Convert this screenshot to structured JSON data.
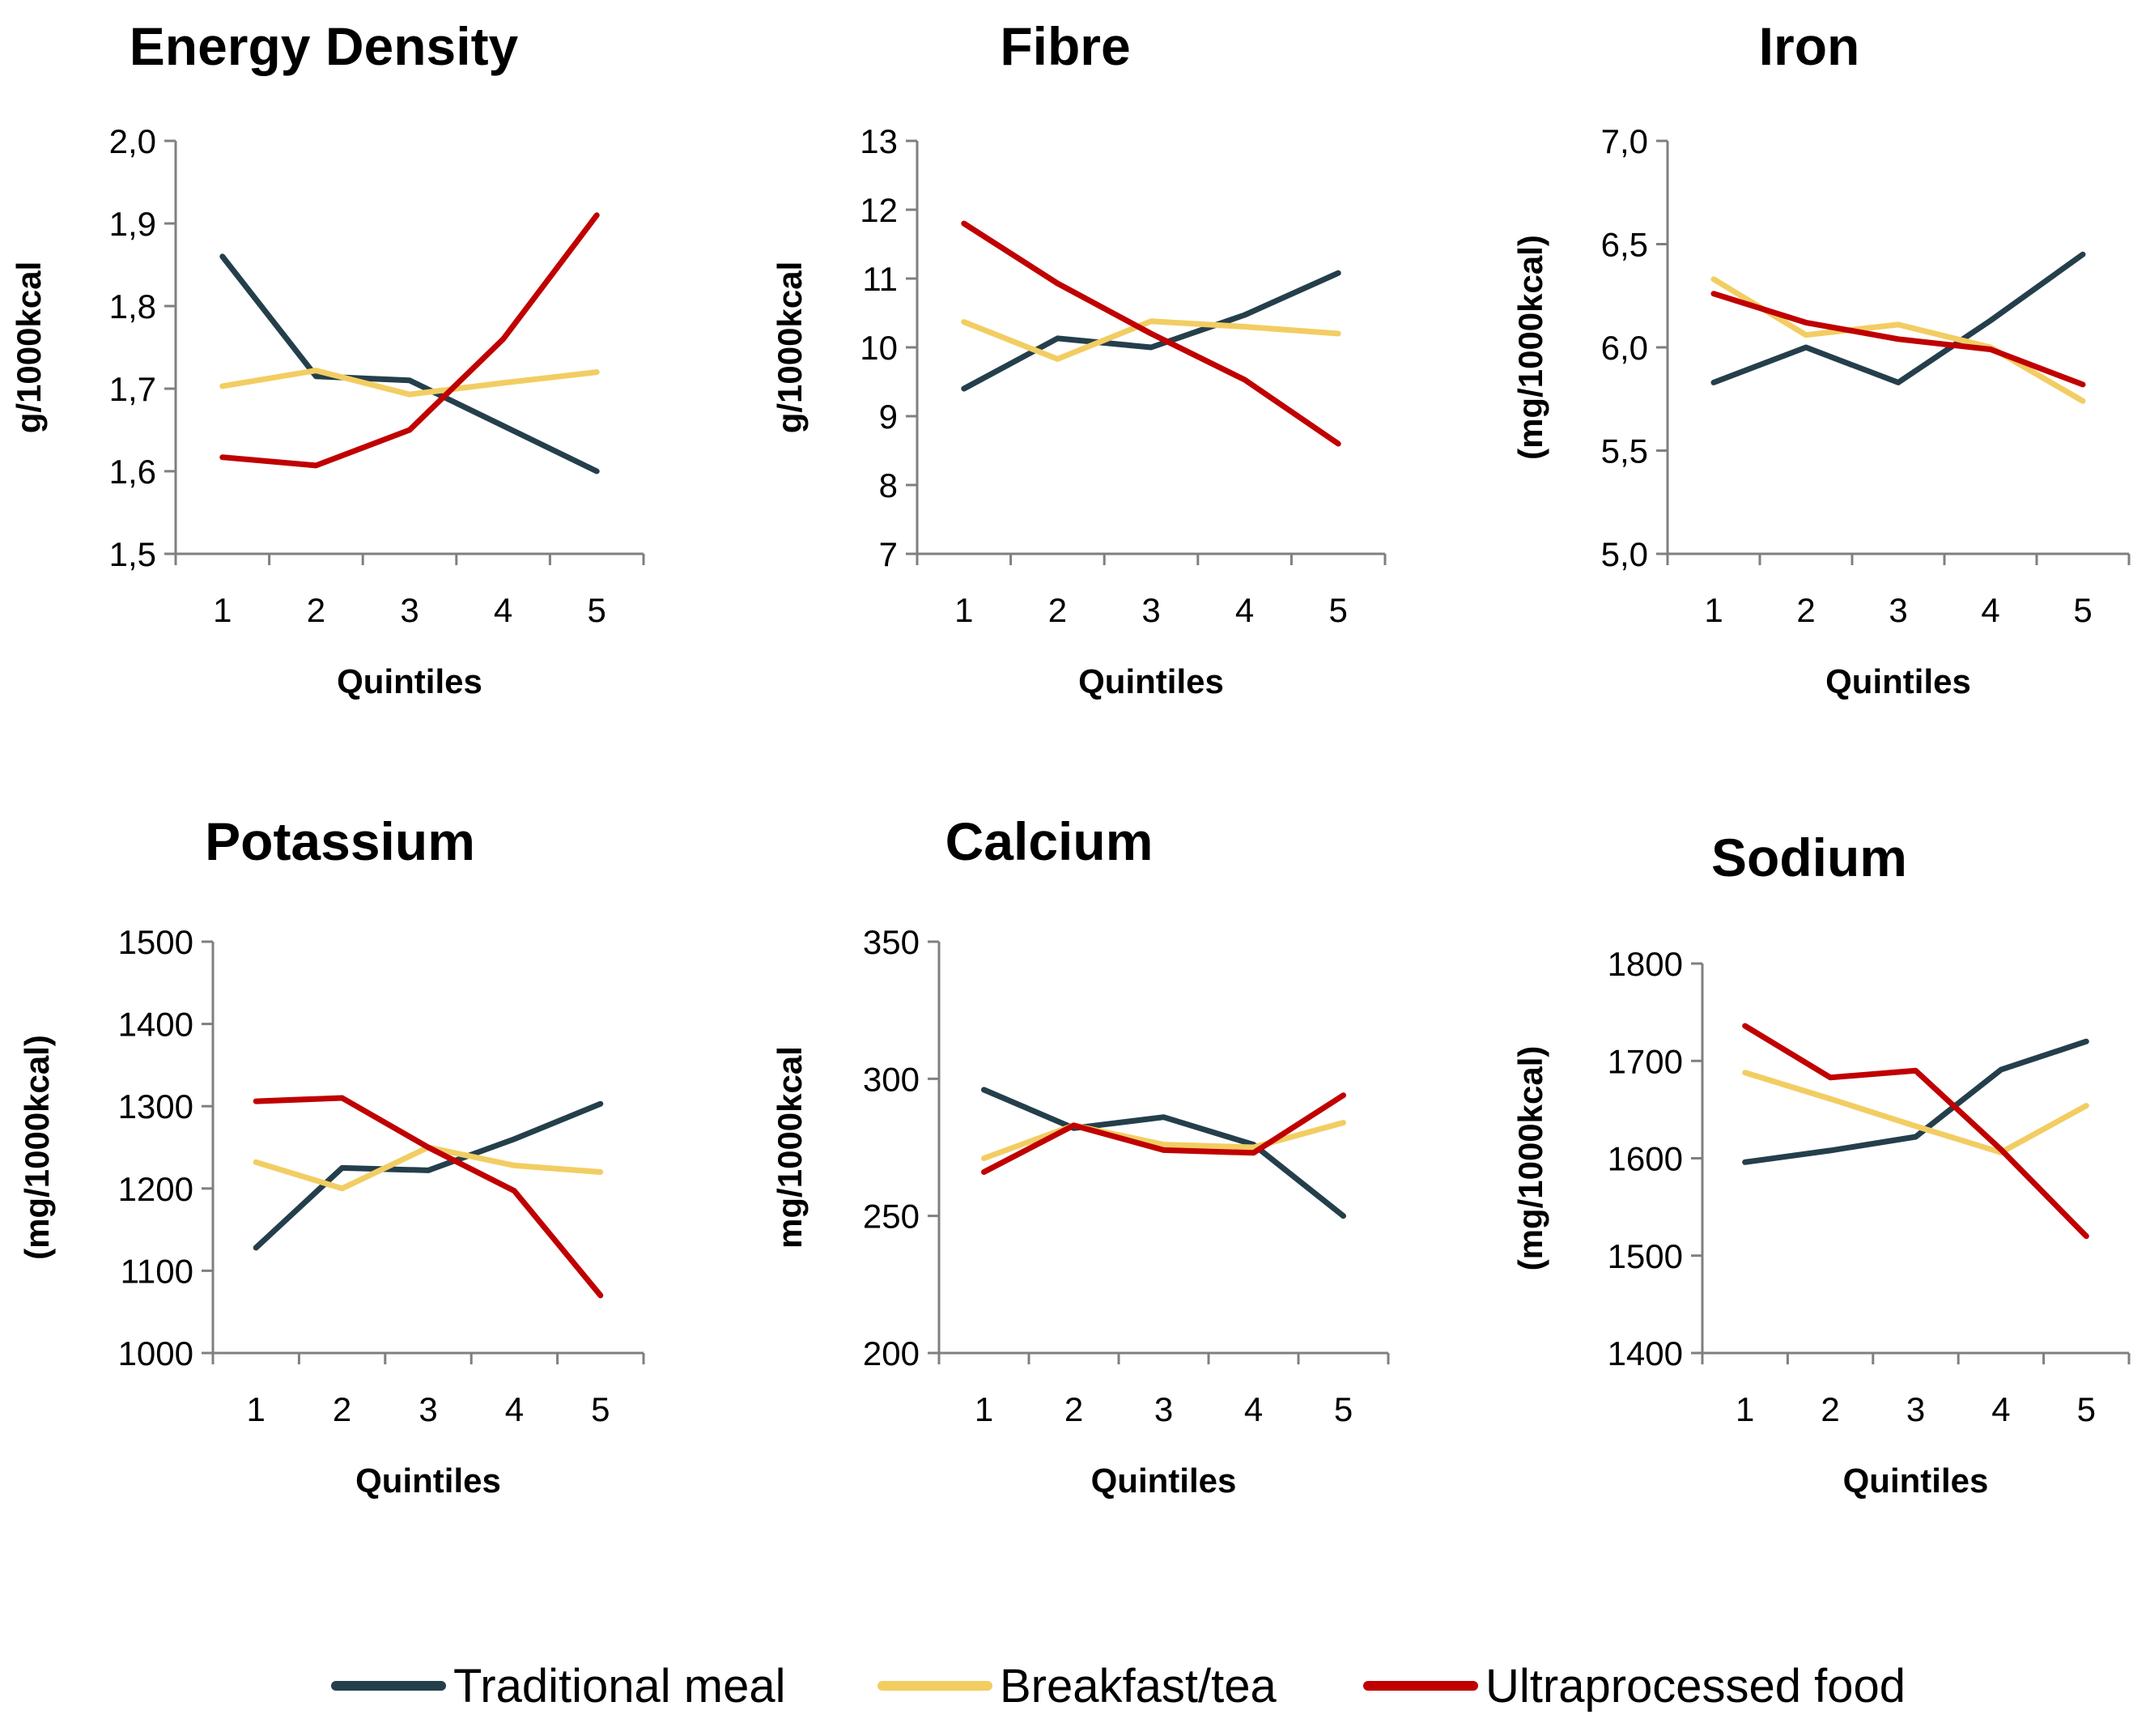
{
  "colors": {
    "Traditional meal": "#243f4b",
    "Breakfast/tea": "#f2cd62",
    "Ultraprocessed food": "#c00000"
  },
  "legend": {
    "items": [
      "Traditional meal",
      "Breakfast/tea",
      "Ultraprocessed food"
    ],
    "placement": "bottom"
  },
  "chart_data": [
    {
      "type": "line",
      "title": "Energy Density",
      "xlabel": "Quintiles",
      "ylabel": "g/1000kcal",
      "categories": [
        "1",
        "2",
        "3",
        "4",
        "5"
      ],
      "ylim": [
        1.5,
        2.0
      ],
      "yticks": [
        1.5,
        1.6,
        1.7,
        1.8,
        1.9,
        2.0
      ],
      "ytick_labels": [
        "1,5",
        "1,6",
        "1,7",
        "1,8",
        "1,9",
        "2,0"
      ],
      "series": [
        {
          "name": "Traditional meal",
          "values": [
            1.86,
            1.715,
            1.71,
            1.655,
            1.6
          ]
        },
        {
          "name": "Breakfast/tea",
          "values": [
            1.703,
            1.722,
            1.693,
            1.707,
            1.72
          ]
        },
        {
          "name": "Ultraprocessed food",
          "values": [
            1.617,
            1.607,
            1.65,
            1.76,
            1.91
          ]
        }
      ]
    },
    {
      "type": "line",
      "title": "Fibre",
      "xlabel": "Quintiles",
      "ylabel": "g/1000kcal",
      "categories": [
        "1",
        "2",
        "3",
        "4",
        "5"
      ],
      "ylim": [
        7,
        13
      ],
      "yticks": [
        7,
        8,
        9,
        10,
        11,
        12,
        13
      ],
      "ytick_labels": [
        "7",
        "8",
        "9",
        "10",
        "11",
        "12",
        "13"
      ],
      "series": [
        {
          "name": "Traditional meal",
          "values": [
            9.4,
            10.13,
            10.0,
            10.47,
            11.08
          ]
        },
        {
          "name": "Breakfast/tea",
          "values": [
            10.37,
            9.83,
            10.38,
            10.3,
            10.2
          ]
        },
        {
          "name": "Ultraprocessed food",
          "values": [
            11.8,
            10.93,
            10.2,
            9.53,
            8.6
          ]
        }
      ]
    },
    {
      "type": "line",
      "title": "Iron",
      "xlabel": "Quintiles",
      "ylabel": "(mg/1000kcal)",
      "categories": [
        "1",
        "2",
        "3",
        "4",
        "5"
      ],
      "ylim": [
        5.0,
        7.0
      ],
      "yticks": [
        5.0,
        5.5,
        6.0,
        6.5,
        7.0
      ],
      "ytick_labels": [
        "5,0",
        "5,5",
        "6,0",
        "6,5",
        "7,0"
      ],
      "series": [
        {
          "name": "Traditional meal",
          "values": [
            5.83,
            6.0,
            5.83,
            6.13,
            6.45
          ]
        },
        {
          "name": "Breakfast/tea",
          "values": [
            6.33,
            6.06,
            6.11,
            6.0,
            5.74
          ]
        },
        {
          "name": "Ultraprocessed food",
          "values": [
            6.26,
            6.12,
            6.04,
            5.99,
            5.82
          ]
        }
      ]
    },
    {
      "type": "line",
      "title": "Potassium",
      "xlabel": "Quintiles",
      "ylabel": "(mg/1000kcal)",
      "categories": [
        "1",
        "2",
        "3",
        "4",
        "5"
      ],
      "ylim": [
        1000,
        1500
      ],
      "yticks": [
        1000,
        1100,
        1200,
        1300,
        1400,
        1500
      ],
      "ytick_labels": [
        "1000",
        "1100",
        "1200",
        "1300",
        "1400",
        "1500"
      ],
      "series": [
        {
          "name": "Traditional meal",
          "values": [
            1128,
            1225,
            1222,
            1260,
            1303
          ]
        },
        {
          "name": "Breakfast/tea",
          "values": [
            1232,
            1200,
            1250,
            1228,
            1220
          ]
        },
        {
          "name": "Ultraprocessed food",
          "values": [
            1306,
            1310,
            1250,
            1197,
            1070
          ]
        }
      ]
    },
    {
      "type": "line",
      "title": "Calcium",
      "xlabel": "Quintiles",
      "ylabel": "mg/1000kcal",
      "categories": [
        "1",
        "2",
        "3",
        "4",
        "5"
      ],
      "ylim": [
        200,
        350
      ],
      "yticks": [
        200,
        250,
        300,
        350
      ],
      "ytick_labels": [
        "200",
        "250",
        "300",
        "350"
      ],
      "series": [
        {
          "name": "Traditional meal",
          "values": [
            296,
            282,
            286,
            276,
            250
          ]
        },
        {
          "name": "Breakfast/tea",
          "values": [
            271,
            283,
            276,
            275,
            284
          ]
        },
        {
          "name": "Ultraprocessed food",
          "values": [
            266,
            283,
            274,
            273,
            294
          ]
        }
      ]
    },
    {
      "type": "line",
      "title": "Sodium",
      "xlabel": "Quintiles",
      "ylabel": "(mg/1000kcal)",
      "categories": [
        "1",
        "2",
        "3",
        "4",
        "5"
      ],
      "ylim": [
        1400,
        1800
      ],
      "yticks": [
        1400,
        1500,
        1600,
        1700,
        1800
      ],
      "ytick_labels": [
        "1400",
        "1500",
        "1600",
        "1700",
        "1800"
      ],
      "series": [
        {
          "name": "Traditional meal",
          "values": [
            1596,
            1608,
            1622,
            1691,
            1720
          ]
        },
        {
          "name": "Breakfast/tea",
          "values": [
            1688,
            1661,
            1633,
            1606,
            1654
          ]
        },
        {
          "name": "Ultraprocessed food",
          "values": [
            1736,
            1683,
            1690,
            1609,
            1520
          ]
        }
      ]
    }
  ]
}
